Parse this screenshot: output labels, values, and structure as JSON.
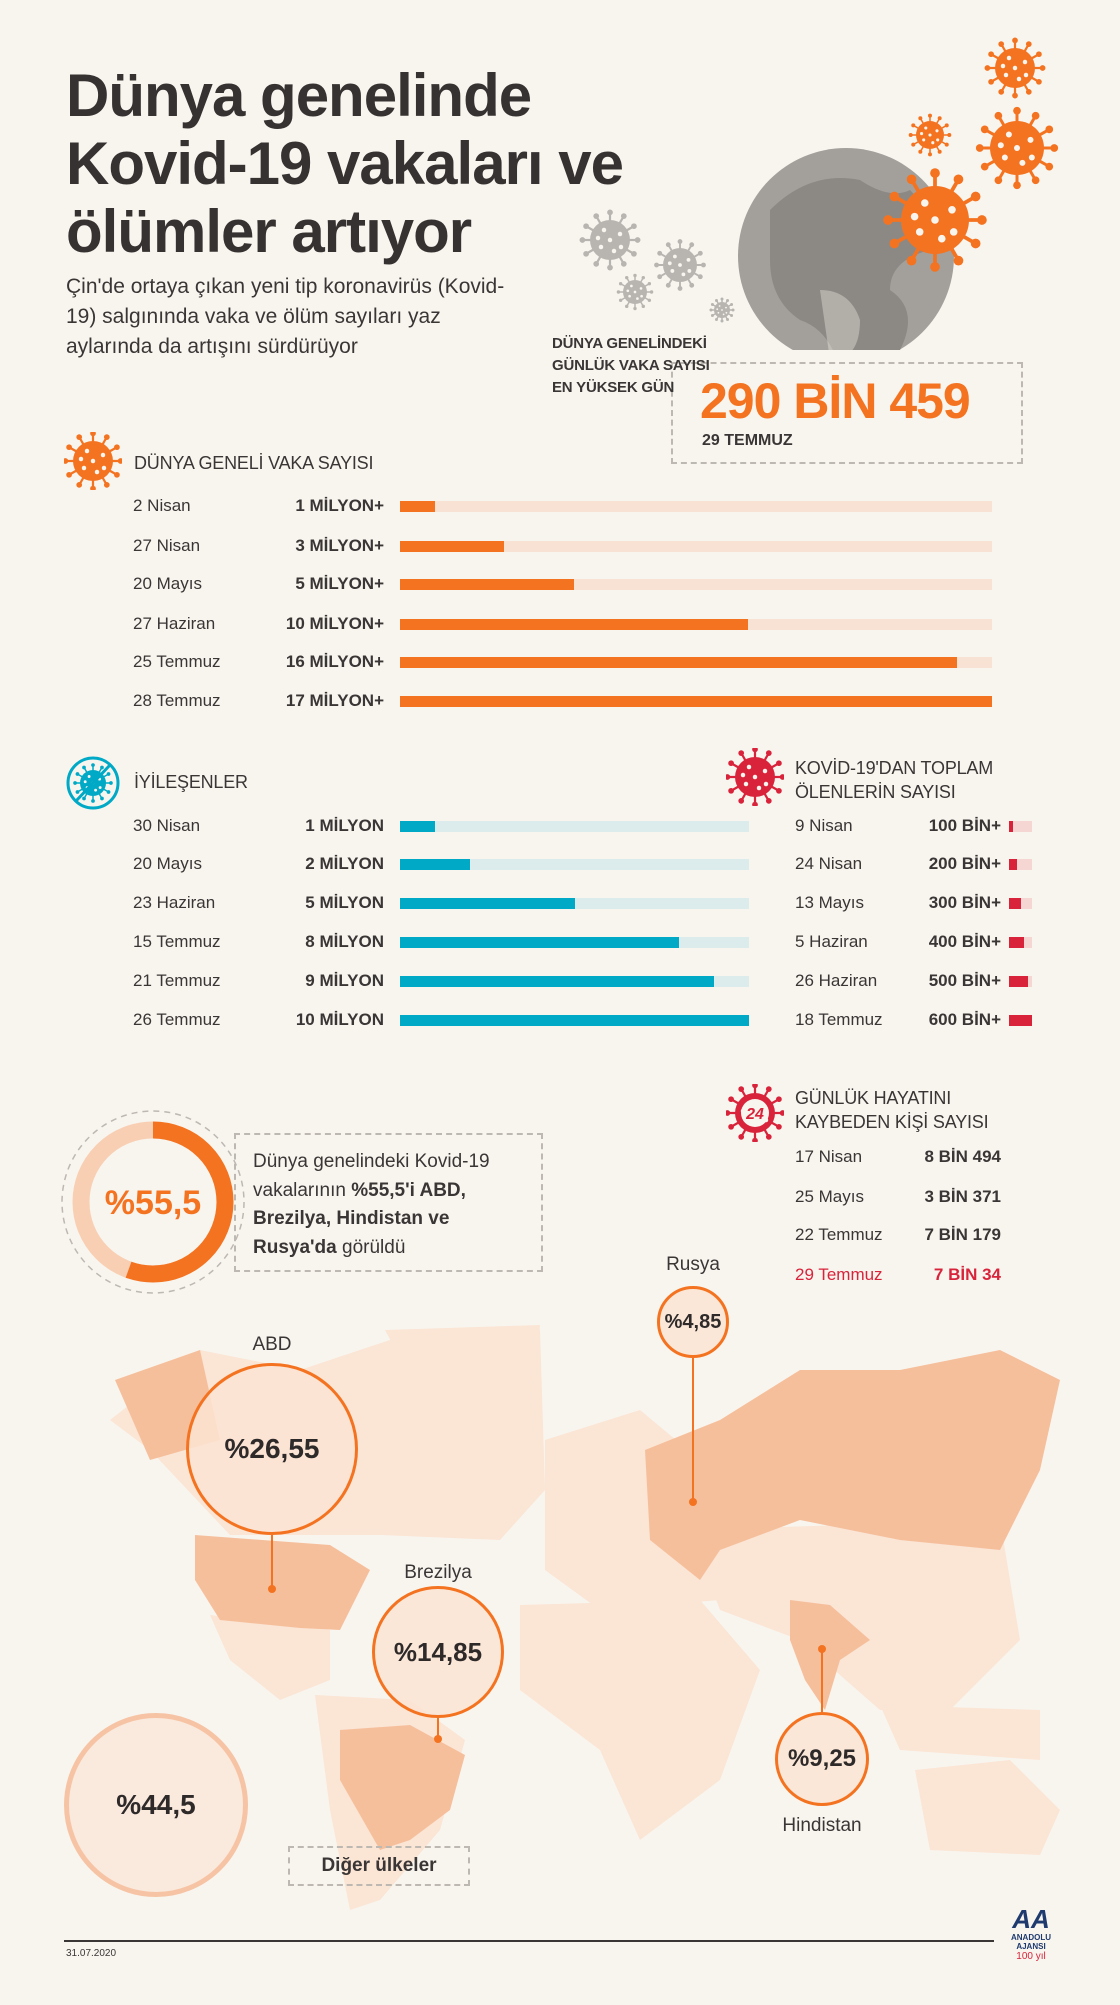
{
  "header": {
    "title_lines": [
      "Dünya genelinde",
      "Kovid-19 vakaları ve",
      "ölümler artıyor"
    ],
    "subtitle": "Çin'de ortaya çıkan yeni tip koronavirüs (Kovid-19) salgınında vaka ve ölüm sayıları yaz aylarında da artışını sürdürüyor"
  },
  "peak": {
    "label_lines": [
      "DÜNYA GENELİNDEKİ",
      "GÜNLÜK VAKA SAYISI",
      "EN YÜKSEK GÜN"
    ],
    "value": "290 BİN 459",
    "date": "29 TEMMUZ"
  },
  "cases": {
    "title": "DÜNYA GENELİ VAKA SAYISI",
    "max": 17,
    "rows": [
      {
        "date": "2 Nisan",
        "value": "1 MİLYON+",
        "n": 1
      },
      {
        "date": "27 Nisan",
        "value": "3 MİLYON+",
        "n": 3
      },
      {
        "date": "20 Mayıs",
        "value": "5 MİLYON+",
        "n": 5
      },
      {
        "date": "27 Haziran",
        "value": "10 MİLYON+",
        "n": 10
      },
      {
        "date": "25 Temmuz",
        "value": "16 MİLYON+",
        "n": 16
      },
      {
        "date": "28 Temmuz",
        "value": "17 MİLYON+",
        "n": 17
      }
    ]
  },
  "recovered": {
    "title": "İYİLEŞENLER",
    "max": 10,
    "rows": [
      {
        "date": "30 Nisan",
        "value": "1 MİLYON",
        "n": 1
      },
      {
        "date": "20 Mayıs",
        "value": "2 MİLYON",
        "n": 2
      },
      {
        "date": "23 Haziran",
        "value": "5 MİLYON",
        "n": 5
      },
      {
        "date": "15 Temmuz",
        "value": "8 MİLYON",
        "n": 8
      },
      {
        "date": "21 Temmuz",
        "value": "9 MİLYON",
        "n": 9
      },
      {
        "date": "26 Temmuz",
        "value": "10 MİLYON",
        "n": 10
      }
    ]
  },
  "deaths": {
    "title_lines": [
      "KOVİD-19'DAN TOPLAM",
      "ÖLENLERİN SAYISI"
    ],
    "max": 600,
    "rows": [
      {
        "date": "9 Nisan",
        "value": "100 BİN+",
        "n": 100
      },
      {
        "date": "24 Nisan",
        "value": "200 BİN+",
        "n": 200
      },
      {
        "date": "13 Mayıs",
        "value": "300 BİN+",
        "n": 300
      },
      {
        "date": "5 Haziran",
        "value": "400 BİN+",
        "n": 400
      },
      {
        "date": "26 Haziran",
        "value": "500 BİN+",
        "n": 500
      },
      {
        "date": "18 Temmuz",
        "value": "600 BİN+",
        "n": 600
      }
    ]
  },
  "daily_deaths": {
    "title_lines": [
      "GÜNLÜK HAYATINI",
      "KAYBEDEN KİŞİ SAYISI"
    ],
    "icon_text": "24",
    "rows": [
      {
        "date": "17 Nisan",
        "value": "8 BİN 494"
      },
      {
        "date": "25 Mayıs",
        "value": "3 BİN 371"
      },
      {
        "date": "22 Temmuz",
        "value": "7 BİN 179"
      },
      {
        "date": "29 Temmuz",
        "value": "7 BİN 34",
        "highlight": true
      }
    ]
  },
  "share": {
    "value": "%55,5",
    "fraction": 0.555,
    "text_plain1": "Dünya genelindeki Kovid-19 vakalarının ",
    "text_bold": "%55,5'i ABD, Brezilya, Hindistan ve Rusya'da",
    "text_plain2": " görüldü"
  },
  "countries": [
    {
      "id": "abd",
      "label": "ABD",
      "value": "%26,55"
    },
    {
      "id": "brezilya",
      "label": "Brezilya",
      "value": "%14,85"
    },
    {
      "id": "rusya",
      "label": "Rusya",
      "value": "%4,85"
    },
    {
      "id": "hindistan",
      "label": "Hindistan",
      "value": "%9,25"
    },
    {
      "id": "diger",
      "label": "Diğer ülkeler",
      "value": "%44,5"
    }
  ],
  "footer": {
    "date": "31.07.2020",
    "logo_text": "ANADOLU AJANSI",
    "logo_mark": "AA",
    "anniversary": "100 yıl"
  },
  "colors": {
    "orange": "#f47321",
    "teal": "#00a9c5",
    "red": "#d9233b",
    "orange_light": "#f7e2d3",
    "teal_light": "#dcebec",
    "red_light": "#f6d6d3"
  }
}
